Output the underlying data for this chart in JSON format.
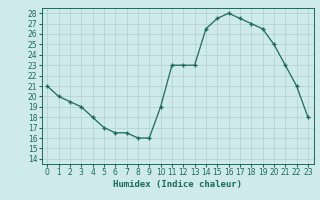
{
  "x": [
    0,
    1,
    2,
    3,
    4,
    5,
    6,
    7,
    8,
    9,
    10,
    11,
    12,
    13,
    14,
    15,
    16,
    17,
    18,
    19,
    20,
    21,
    22,
    23
  ],
  "y": [
    21,
    20,
    19.5,
    19,
    18,
    17,
    16.5,
    16.5,
    16,
    16,
    19,
    23,
    23,
    23,
    26.5,
    27.5,
    28,
    27.5,
    27,
    26.5,
    25,
    23,
    21,
    18
  ],
  "xlabel": "Humidex (Indice chaleur)",
  "xlim": [
    -0.5,
    23.5
  ],
  "ylim": [
    13.5,
    28.5
  ],
  "yticks": [
    14,
    15,
    16,
    17,
    18,
    19,
    20,
    21,
    22,
    23,
    24,
    25,
    26,
    27,
    28
  ],
  "xticks": [
    0,
    1,
    2,
    3,
    4,
    5,
    6,
    7,
    8,
    9,
    10,
    11,
    12,
    13,
    14,
    15,
    16,
    17,
    18,
    19,
    20,
    21,
    22,
    23
  ],
  "line_color": "#1a6b5a",
  "marker_color": "#1a6b5a",
  "bg_color": "#ceeaea",
  "grid_color": "#afd0d0",
  "label_fontsize": 6.5,
  "tick_fontsize": 5.5
}
